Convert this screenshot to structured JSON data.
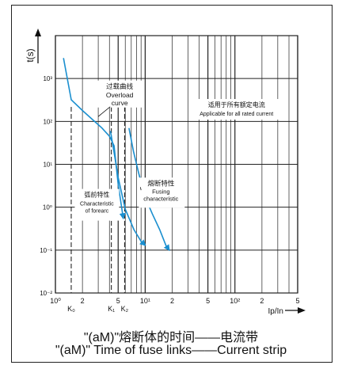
{
  "chart_data": {
    "type": "line",
    "title": "",
    "xlabel": "Ip/In",
    "ylabel": "t(s)",
    "x_scale": "log",
    "y_scale": "log",
    "xlim": [
      1,
      500
    ],
    "ylim": [
      0.01,
      10000
    ],
    "grid": true,
    "y_ticks": [
      {
        "value": 0.01,
        "label": "10⁻²"
      },
      {
        "value": 0.1,
        "label": "10⁻¹"
      },
      {
        "value": 1,
        "label": "10⁰"
      },
      {
        "value": 10,
        "label": "10¹"
      },
      {
        "value": 100,
        "label": "10²"
      },
      {
        "value": 1000,
        "label": "10³"
      }
    ],
    "x_ticks": [
      {
        "value": 1,
        "label": "10⁰"
      },
      {
        "value": 2,
        "label": "2"
      },
      {
        "value": 5,
        "label": "5"
      },
      {
        "value": 10,
        "label": "10¹"
      },
      {
        "value": 20,
        "label": "2"
      },
      {
        "value": 50,
        "label": "5"
      },
      {
        "value": 100,
        "label": "10²"
      },
      {
        "value": 200,
        "label": "2"
      },
      {
        "value": 500,
        "label": "5"
      }
    ],
    "k_markers": [
      {
        "value": 1.5,
        "label": "K₀"
      },
      {
        "value": 4.2,
        "label": "K₁"
      },
      {
        "value": 5.9,
        "label": "K₂"
      }
    ],
    "series": [
      {
        "key": "overload",
        "color": "#1b8fcf",
        "x": [
          1.23,
          1.5,
          2.0,
          2.6,
          3.3,
          4.0,
          4.5,
          5.0,
          5.7
        ],
        "y": [
          3000,
          320,
          180,
          110,
          70,
          45,
          27,
          3.5,
          0.55
        ]
      },
      {
        "key": "fusing",
        "color": "#1b8fcf",
        "x": [
          6.6,
          7.4,
          8.5,
          10.0,
          12.0,
          14.5,
          17.0,
          18.5
        ],
        "y": [
          70,
          20,
          6.0,
          1.7,
          0.7,
          0.3,
          0.13,
          0.1
        ]
      },
      {
        "key": "forearc",
        "color": "#1b8fcf",
        "x": [
          4.1,
          4.4,
          5.0,
          6.0,
          7.5,
          9.0,
          10.0
        ],
        "y": [
          60,
          25,
          5.0,
          0.9,
          0.3,
          0.16,
          0.13
        ]
      }
    ],
    "annotations": {
      "overload_zh": "过载曲线",
      "overload_en_1": "Overload",
      "overload_en_2": "curve",
      "applicable_zh": "适用于所有额定电流",
      "applicable_en": "Applicable for all rated current",
      "forearc_zh": "弧前特性",
      "forearc_en_1": "Characteristic",
      "forearc_en_2": "of forearc",
      "fusing_zh": "熔断特性",
      "fusing_en_1": "Fusing",
      "fusing_en_2": "characteristic"
    }
  },
  "caption": {
    "zh": "\"(aM)\"熔断体的时间——电流带",
    "en": "\"(aM)\" Time of fuse links——Current strip"
  }
}
